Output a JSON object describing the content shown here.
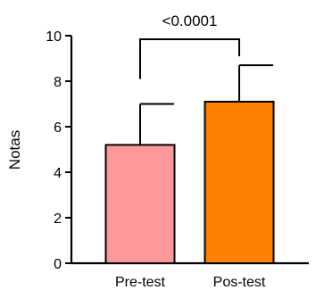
{
  "chart_data": {
    "type": "bar",
    "title": "",
    "xlabel": "",
    "ylabel": "Notas",
    "ylim": [
      0,
      10
    ],
    "yticks": [
      0,
      2,
      4,
      6,
      8,
      10
    ],
    "categories": [
      "Pre-test",
      "Pos-test"
    ],
    "values": [
      5.2,
      7.1
    ],
    "error_upper": [
      7.0,
      8.7
    ],
    "bar_colors": [
      "#ff9999",
      "#ff7f00"
    ],
    "significance": {
      "between": [
        0,
        1
      ],
      "label": "<0.0001"
    },
    "grid": false,
    "legend": "none"
  }
}
